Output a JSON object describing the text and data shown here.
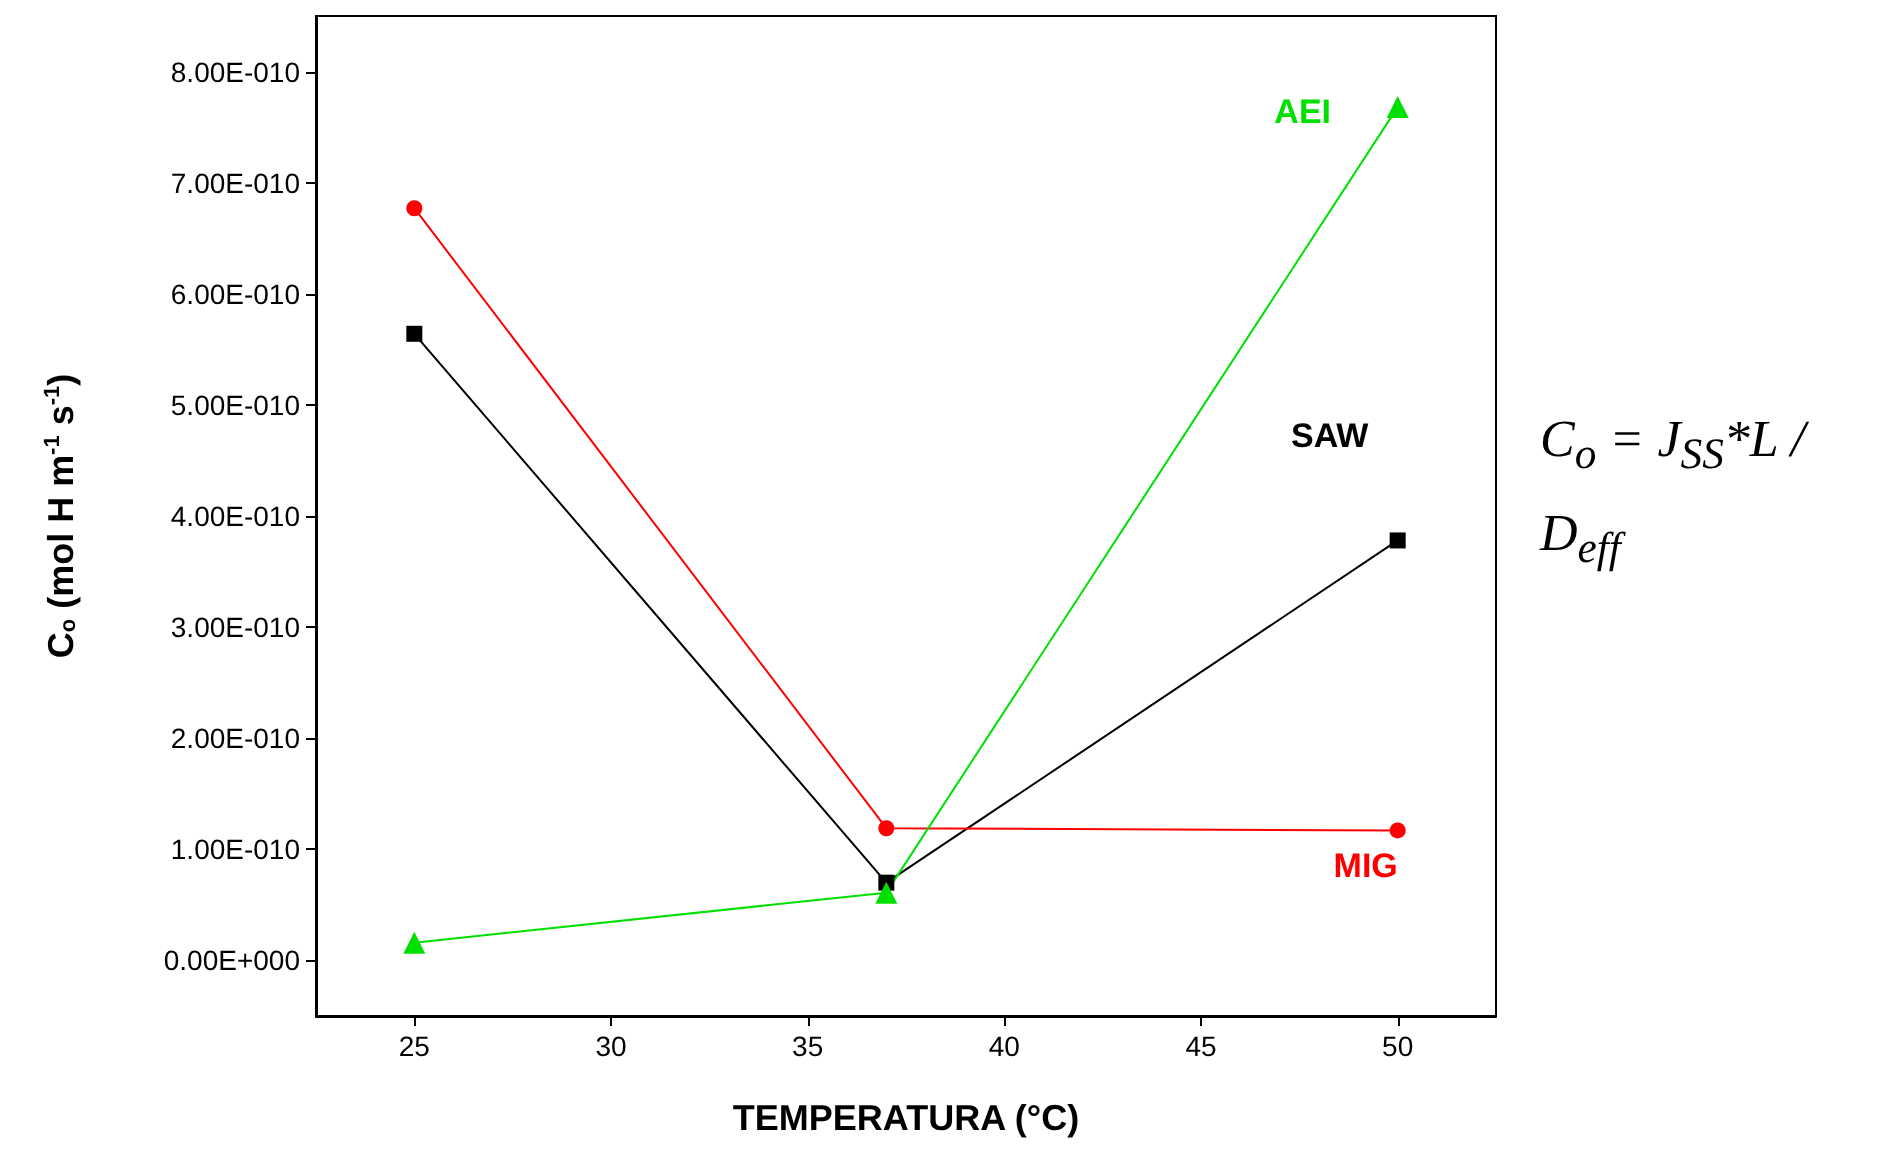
{
  "chart_data": {
    "type": "line",
    "xlabel": "TEMPERATURA (°C)",
    "ylabel": "C$_{o}$ (mol H m$^{-1}$ s$^{-1}$)",
    "x": [
      25,
      37,
      50
    ],
    "series": [
      {
        "name": "SAW",
        "color": "#000000",
        "marker": "square",
        "values": [
          5.64e-10,
          7e-11,
          3.78e-10
        ]
      },
      {
        "name": "MIG",
        "color": "#ff0000",
        "marker": "circle",
        "values": [
          6.77e-10,
          1.19e-10,
          1.17e-10
        ]
      },
      {
        "name": "AEI",
        "color": "#00e000",
        "marker": "triangle",
        "values": [
          1.6e-11,
          6.1e-11,
          7.68e-10
        ]
      }
    ],
    "xlim": [
      22.5,
      52.5
    ],
    "xticks": [
      25,
      30,
      35,
      40,
      45,
      50
    ],
    "ylim": [
      -5e-11,
      8.5e-10
    ],
    "yticks": [
      {
        "value": 0,
        "label": "0.00E+000"
      },
      {
        "value": 1e-10,
        "label": "1.00E-010"
      },
      {
        "value": 2e-10,
        "label": "2.00E-010"
      },
      {
        "value": 3e-10,
        "label": "3.00E-010"
      },
      {
        "value": 4e-10,
        "label": "4.00E-010"
      },
      {
        "value": 5e-10,
        "label": "5.00E-010"
      },
      {
        "value": 6e-10,
        "label": "6.00E-010"
      },
      {
        "value": 7e-10,
        "label": "7.00E-010"
      },
      {
        "value": 8e-10,
        "label": "8.00E-010"
      }
    ],
    "grid": false,
    "legend": false,
    "line_style": "solid",
    "annotations": [
      "C$_{o}$ = J$_{SS}$*L / D$_{eff}$"
    ]
  }
}
